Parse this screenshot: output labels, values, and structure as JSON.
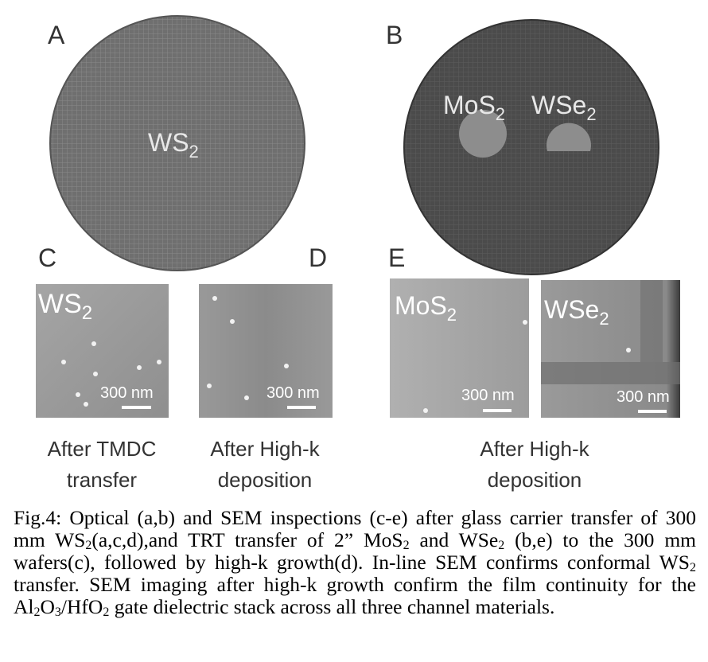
{
  "panels": [
    "A",
    "B",
    "C",
    "D",
    "E"
  ],
  "wafers": {
    "a": {
      "material": [
        "WS",
        "2"
      ]
    },
    "b": {
      "materials": [
        [
          "MoS",
          "2"
        ],
        [
          "WSe",
          "2"
        ]
      ]
    }
  },
  "sem": [
    {
      "material": [
        "WS",
        "2"
      ],
      "scale_bar": "300 nm"
    },
    {
      "scale_bar": "300 nm"
    },
    {
      "material": [
        "MoS",
        "2"
      ],
      "scale_bar": "300 nm"
    },
    {
      "material": [
        "WSe",
        "2"
      ],
      "scale_bar": "300 nm"
    }
  ],
  "captions": [
    [
      "After TMDC",
      "transfer"
    ],
    [
      "After High-k",
      "deposition"
    ],
    [
      "After High-k",
      "deposition"
    ]
  ],
  "figure_caption": [
    "Fig.4: Optical (a,b) and SEM inspections (c-e) after glass carrier transfer of 300 mm WS",
    {
      "sub": "2"
    },
    "(a,c,d),and TRT transfer of 2” MoS",
    {
      "sub": "2"
    },
    " and WSe",
    {
      "sub": "2"
    },
    " (b,e) to the 300 mm wafers(c), followed by high-k growth(d). In-line SEM confirms conformal WS",
    {
      "sub": "2"
    },
    " transfer. SEM imaging after high-k growth confirm the film continuity for the Al",
    {
      "sub": "2"
    },
    "O",
    {
      "sub": "3"
    },
    "/HfO",
    {
      "sub": "2"
    },
    " gate dielectric stack across all three channel materials."
  ]
}
